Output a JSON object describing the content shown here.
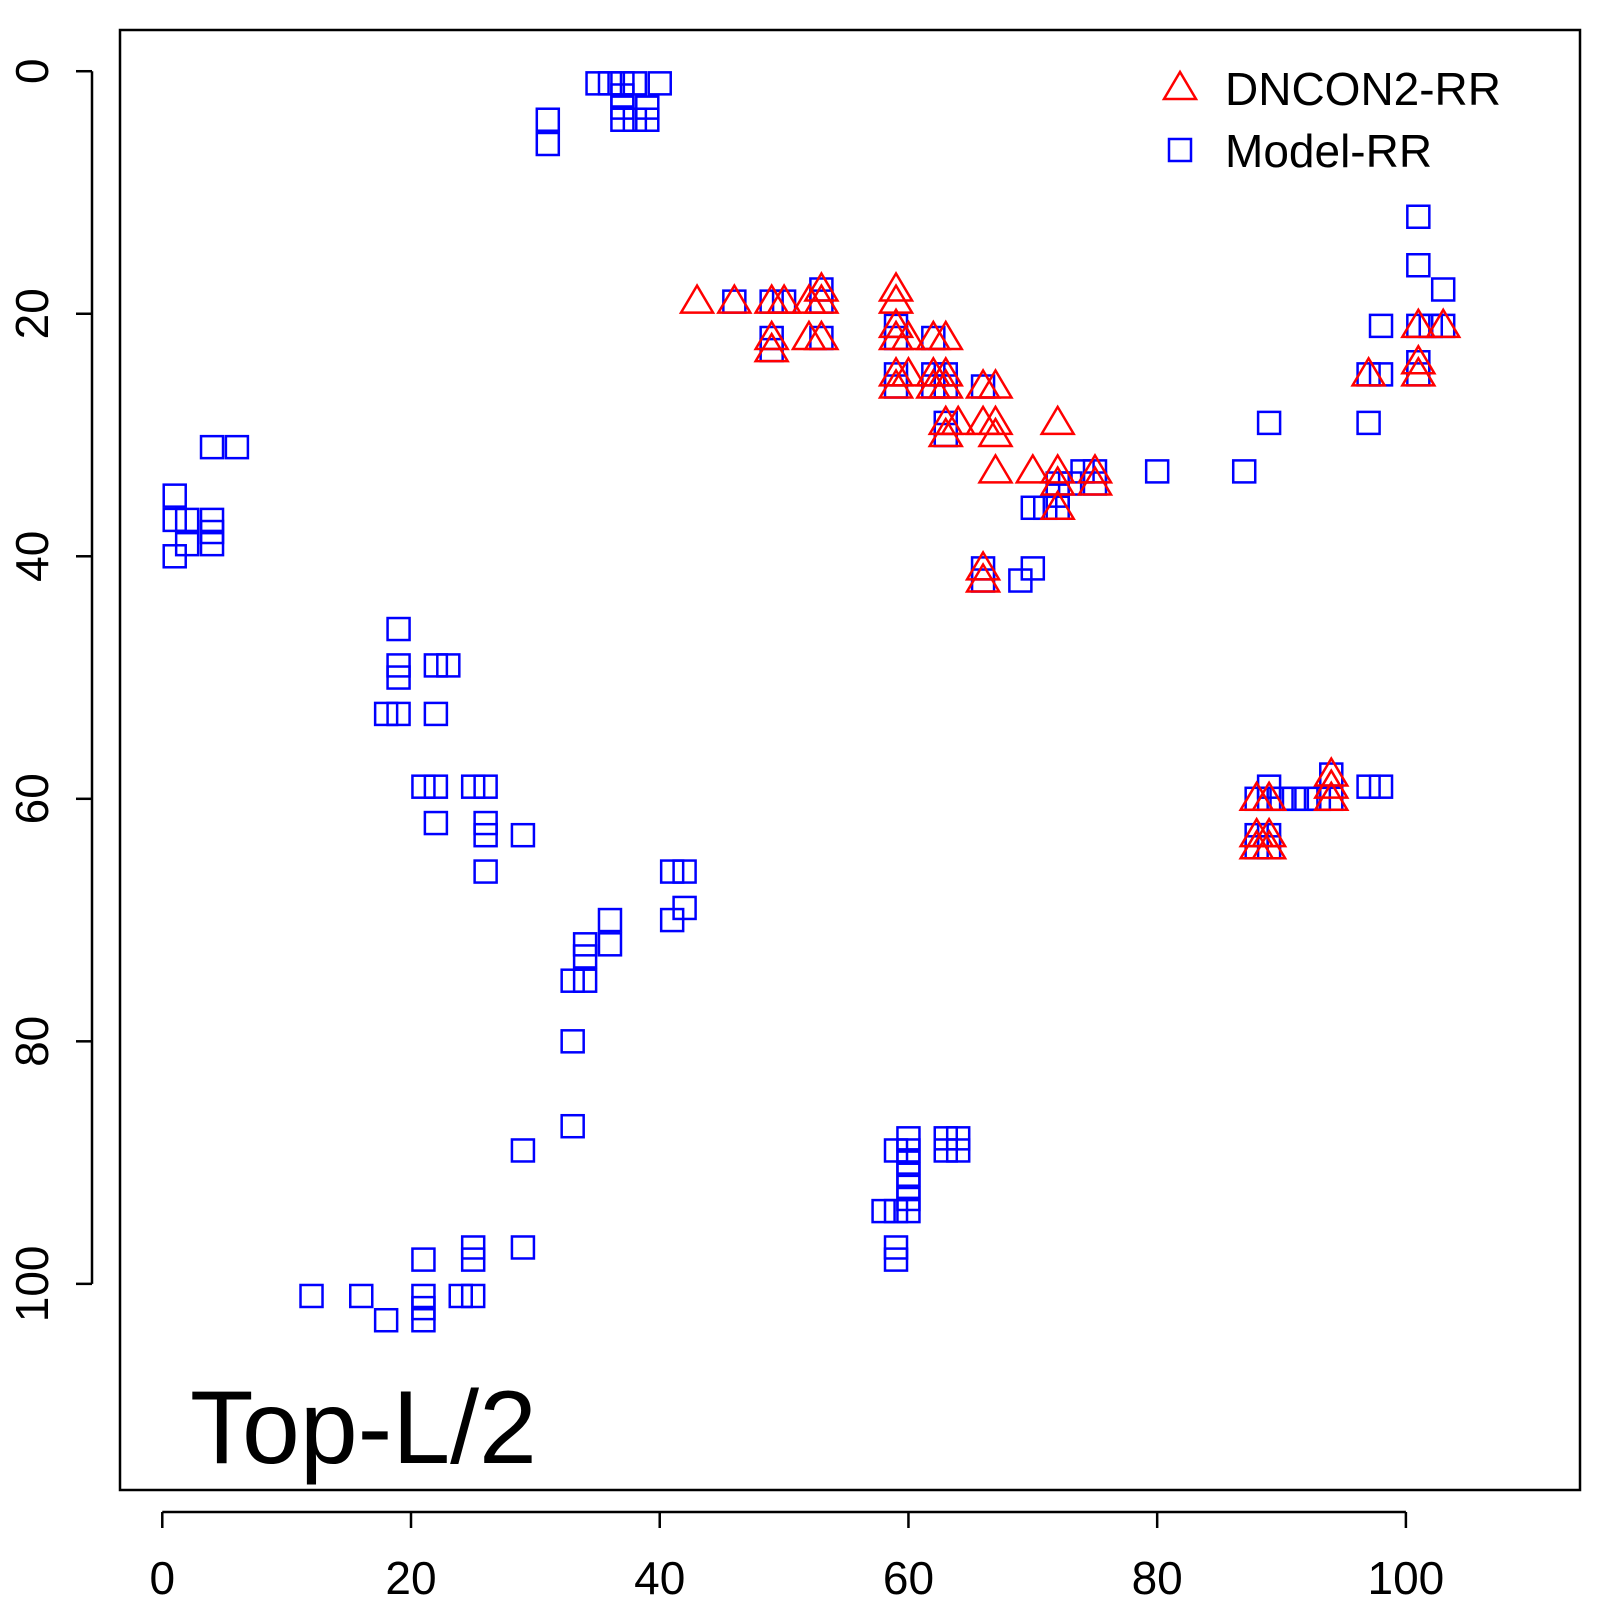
{
  "chart_data": {
    "type": "scatter",
    "title": "",
    "xlabel": "",
    "ylabel": "",
    "xlim": [
      -3.4,
      114.0
    ],
    "ylim": [
      117.0,
      -3.4
    ],
    "y_axis_reversed": true,
    "xticks": [
      0,
      20,
      40,
      60,
      80,
      100
    ],
    "yticks": [
      0,
      20,
      40,
      60,
      80,
      100
    ],
    "grid": false,
    "legend_position": "top-right",
    "annotation": "Top-L/2",
    "series": [
      {
        "name": "DNCON2-RR",
        "marker": "triangle",
        "color": "#ff0000",
        "points": [
          [
            43,
            19
          ],
          [
            46,
            19
          ],
          [
            49,
            19
          ],
          [
            50,
            19
          ],
          [
            52,
            19
          ],
          [
            53,
            18
          ],
          [
            53,
            19
          ],
          [
            52,
            22
          ],
          [
            53,
            22
          ],
          [
            49,
            22
          ],
          [
            49,
            23
          ],
          [
            59,
            18
          ],
          [
            59,
            19
          ],
          [
            59,
            21
          ],
          [
            59,
            22
          ],
          [
            60,
            22
          ],
          [
            59,
            25
          ],
          [
            59,
            26
          ],
          [
            60,
            25
          ],
          [
            62,
            22
          ],
          [
            63,
            22
          ],
          [
            62,
            25
          ],
          [
            63,
            25
          ],
          [
            62,
            26
          ],
          [
            63,
            26
          ],
          [
            66,
            26
          ],
          [
            67,
            26
          ],
          [
            63,
            29
          ],
          [
            64,
            29
          ],
          [
            63,
            30
          ],
          [
            66,
            29
          ],
          [
            67,
            29
          ],
          [
            67,
            30
          ],
          [
            67,
            33
          ],
          [
            70,
            33
          ],
          [
            72,
            29
          ],
          [
            72,
            33
          ],
          [
            72,
            34
          ],
          [
            72,
            36
          ],
          [
            75,
            33
          ],
          [
            75,
            34
          ],
          [
            66,
            41
          ],
          [
            66,
            42
          ],
          [
            97,
            25
          ],
          [
            101,
            21
          ],
          [
            101,
            24
          ],
          [
            101,
            25
          ],
          [
            103,
            21
          ],
          [
            88,
            60
          ],
          [
            89,
            60
          ],
          [
            88,
            63
          ],
          [
            89,
            63
          ],
          [
            88,
            64
          ],
          [
            89,
            64
          ],
          [
            94,
            58
          ],
          [
            94,
            59
          ],
          [
            94,
            60
          ]
        ]
      },
      {
        "name": "Model-RR",
        "marker": "square",
        "color": "#0000ff",
        "points": [
          [
            35,
            1
          ],
          [
            36,
            1
          ],
          [
            37,
            1
          ],
          [
            38,
            1
          ],
          [
            40,
            1
          ],
          [
            37,
            2
          ],
          [
            37,
            3
          ],
          [
            39,
            3
          ],
          [
            37,
            4
          ],
          [
            38,
            4
          ],
          [
            39,
            4
          ],
          [
            31,
            4
          ],
          [
            31,
            6
          ],
          [
            1,
            35
          ],
          [
            1,
            37
          ],
          [
            2,
            37
          ],
          [
            4,
            37
          ],
          [
            4,
            38
          ],
          [
            2,
            39
          ],
          [
            4,
            39
          ],
          [
            1,
            40
          ],
          [
            4,
            31
          ],
          [
            6,
            31
          ],
          [
            19,
            46
          ],
          [
            19,
            49
          ],
          [
            19,
            50
          ],
          [
            22,
            49
          ],
          [
            23,
            49
          ],
          [
            18,
            53
          ],
          [
            19,
            53
          ],
          [
            22,
            53
          ],
          [
            21,
            59
          ],
          [
            22,
            59
          ],
          [
            25,
            59
          ],
          [
            26,
            59
          ],
          [
            22,
            62
          ],
          [
            26,
            62
          ],
          [
            26,
            63
          ],
          [
            29,
            63
          ],
          [
            26,
            66
          ],
          [
            41,
            66
          ],
          [
            42,
            66
          ],
          [
            36,
            70
          ],
          [
            41,
            70
          ],
          [
            42,
            69
          ],
          [
            34,
            72
          ],
          [
            36,
            72
          ],
          [
            34,
            73
          ],
          [
            33,
            75
          ],
          [
            34,
            75
          ],
          [
            33,
            80
          ],
          [
            33,
            87
          ],
          [
            29,
            89
          ],
          [
            29,
            97
          ],
          [
            25,
            97
          ],
          [
            25,
            98
          ],
          [
            21,
            98
          ],
          [
            21,
            101
          ],
          [
            21,
            102
          ],
          [
            21,
            103
          ],
          [
            12,
            101
          ],
          [
            16,
            101
          ],
          [
            18,
            103
          ],
          [
            24,
            101
          ],
          [
            25,
            101
          ],
          [
            59,
            89
          ],
          [
            60,
            88
          ],
          [
            60,
            89
          ],
          [
            60,
            90
          ],
          [
            60,
            91
          ],
          [
            60,
            92
          ],
          [
            60,
            93
          ],
          [
            58,
            94
          ],
          [
            59,
            94
          ],
          [
            60,
            94
          ],
          [
            59,
            97
          ],
          [
            59,
            98
          ],
          [
            63,
            88
          ],
          [
            64,
            88
          ],
          [
            63,
            89
          ],
          [
            64,
            89
          ],
          [
            46,
            19
          ],
          [
            49,
            19
          ],
          [
            50,
            19
          ],
          [
            53,
            18
          ],
          [
            53,
            19
          ],
          [
            49,
            22
          ],
          [
            53,
            22
          ],
          [
            49,
            23
          ],
          [
            59,
            21
          ],
          [
            59,
            22
          ],
          [
            59,
            25
          ],
          [
            59,
            26
          ],
          [
            62,
            22
          ],
          [
            62,
            25
          ],
          [
            63,
            25
          ],
          [
            62,
            26
          ],
          [
            63,
            26
          ],
          [
            66,
            26
          ],
          [
            63,
            29
          ],
          [
            63,
            30
          ],
          [
            72,
            34
          ],
          [
            72,
            35
          ],
          [
            72,
            36
          ],
          [
            70,
            36
          ],
          [
            71,
            36
          ],
          [
            73,
            34
          ],
          [
            74,
            33
          ],
          [
            75,
            33
          ],
          [
            75,
            34
          ],
          [
            66,
            41
          ],
          [
            66,
            42
          ],
          [
            70,
            41
          ],
          [
            69,
            42
          ],
          [
            80,
            33
          ],
          [
            87,
            33
          ],
          [
            89,
            29
          ],
          [
            101,
            12
          ],
          [
            101,
            16
          ],
          [
            103,
            18
          ],
          [
            98,
            21
          ],
          [
            101,
            21
          ],
          [
            102,
            21
          ],
          [
            103,
            21
          ],
          [
            97,
            25
          ],
          [
            98,
            25
          ],
          [
            101,
            24
          ],
          [
            101,
            25
          ],
          [
            97,
            29
          ],
          [
            88,
            60
          ],
          [
            89,
            59
          ],
          [
            89,
            60
          ],
          [
            90,
            60
          ],
          [
            91,
            60
          ],
          [
            92,
            60
          ],
          [
            93,
            60
          ],
          [
            94,
            58
          ],
          [
            94,
            60
          ],
          [
            97,
            59
          ],
          [
            98,
            59
          ],
          [
            88,
            63
          ],
          [
            89,
            63
          ],
          [
            88,
            64
          ],
          [
            89,
            64
          ]
        ]
      }
    ]
  }
}
